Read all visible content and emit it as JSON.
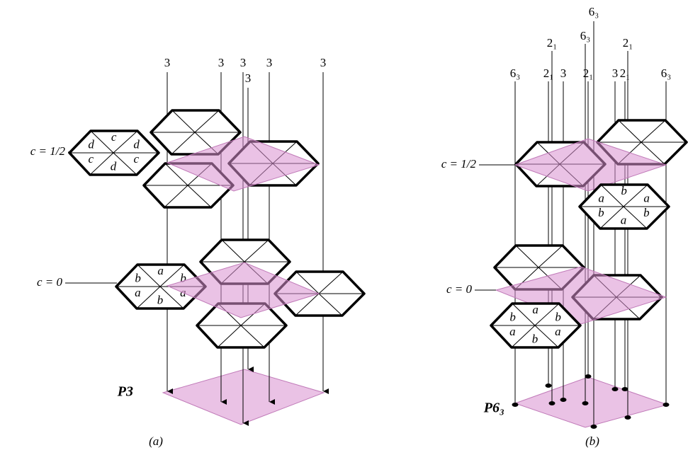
{
  "panels": [
    {
      "label": "(a)",
      "symbol": "P3",
      "level_top": "c = 1/2",
      "level_bottom": "c = 0",
      "axes": [
        "3",
        "3",
        "3",
        "3",
        "3",
        "3"
      ],
      "letters_top": [
        "d",
        "c",
        "d",
        "c",
        "d",
        "c"
      ],
      "letters_bottom": [
        "b",
        "a",
        "b",
        "a",
        "b",
        "a"
      ]
    },
    {
      "label": "(b)",
      "symbol": "P6₃",
      "level_top": "c = 1/2",
      "level_bottom": "c = 0",
      "axes": [
        "6₃",
        "2₁",
        "2₁",
        "3",
        "6₃",
        "6₃",
        "2₁",
        "3",
        "2₁",
        "2₁",
        "6₃"
      ],
      "letters_top": [
        "a",
        "b",
        "a",
        "b",
        "a",
        "b"
      ],
      "letters_bottom": [
        "b",
        "a",
        "b",
        "a",
        "b",
        "a"
      ]
    }
  ]
}
